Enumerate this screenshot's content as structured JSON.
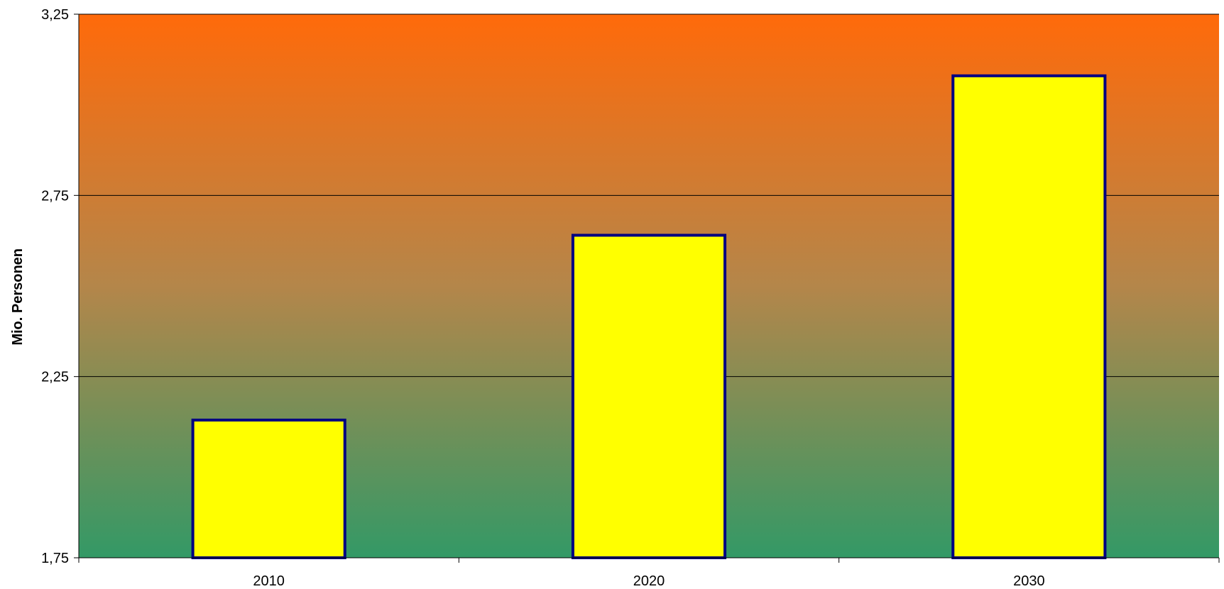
{
  "chart_data": {
    "type": "bar",
    "categories": [
      "2010",
      "2020",
      "2030"
    ],
    "values": [
      2.13,
      2.64,
      3.08
    ],
    "title": "",
    "xlabel": "",
    "ylabel": "Mio. Personen",
    "ylim": [
      1.75,
      3.25
    ],
    "yticks": [
      1.75,
      2.25,
      2.75,
      3.25
    ],
    "ytick_labels": [
      "1,75",
      "2,25",
      "2,75",
      "3,25"
    ],
    "grid": true,
    "legend": "none",
    "colors": {
      "bar_fill": "#ffff00",
      "bar_border": "#000080",
      "background_top": "#ff6a0a",
      "background_bottom": "#339966",
      "gridline": "#000000"
    }
  }
}
